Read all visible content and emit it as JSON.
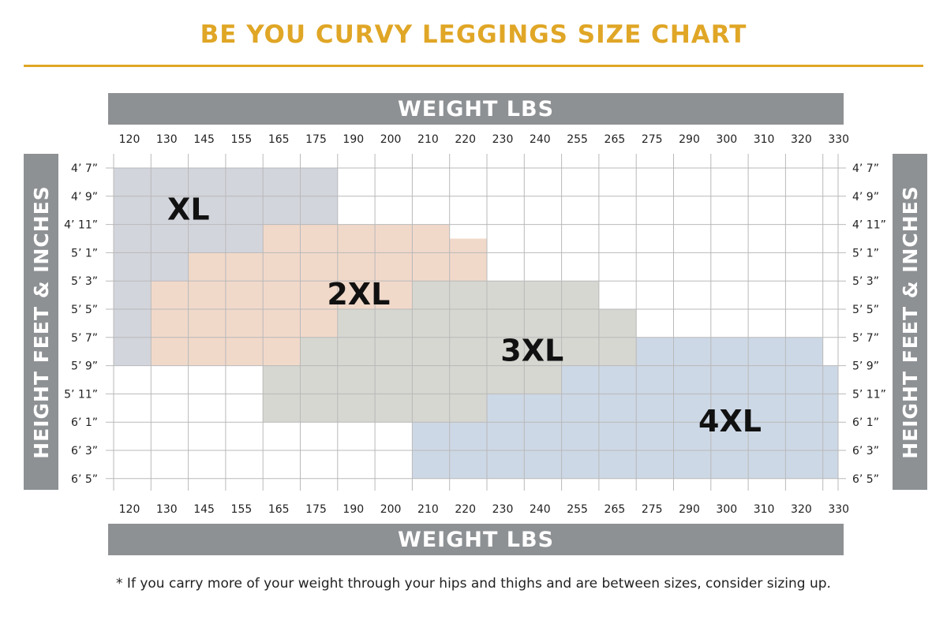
{
  "title": "BE YOU CURVY LEGGINGS SIZE CHART",
  "colors": {
    "title": "#e0a626",
    "band": "#8e9194",
    "grid": "#b9b9b9",
    "sizes": {
      "XL": "#d3d5dd",
      "2XL": "#f1d9ca",
      "3XL": "#d6d7d1",
      "4XL": "#cdd8e6"
    }
  },
  "footnote": "* If you carry more of your weight through your hips and thighs and are between sizes, consider sizing up.",
  "chart_data": {
    "type": "heatmap",
    "xlabel": "WEIGHT LBS",
    "ylabel": "HEIGHT FEET & INCHES",
    "x": [
      "120",
      "130",
      "145",
      "155",
      "165",
      "175",
      "190",
      "200",
      "210",
      "220",
      "230",
      "240",
      "255",
      "265",
      "275",
      "290",
      "300",
      "310",
      "320",
      "330"
    ],
    "y": [
      "4’ 7”",
      "4’ 9”",
      "4’ 11”",
      "5’ 1”",
      "5’ 3”",
      "5’ 5”",
      "5’ 7”",
      "5’ 9”",
      "5’ 11”",
      "6’ 1”",
      "6’ 3”",
      "6’ 5”"
    ],
    "series": [
      {
        "name": "XL",
        "regions": [
          {
            "x": [
              "120",
              "190"
            ],
            "y": [
              "4’ 7”",
              "4’ 11”"
            ]
          },
          {
            "x": [
              "120",
              "165"
            ],
            "y": [
              "4’ 11”",
              "5’ 1”"
            ]
          },
          {
            "x": [
              "120",
              "145"
            ],
            "y": [
              "5’ 1”",
              "5’ 3”"
            ]
          },
          {
            "x": [
              "120",
              "130"
            ],
            "y": [
              "5’ 3”",
              "5’ 9”"
            ]
          }
        ]
      },
      {
        "name": "2XL",
        "regions": [
          {
            "x": [
              "165",
              "220"
            ],
            "y": [
              "4’ 11”",
              "5’ 1”"
            ]
          },
          {
            "x": [
              "220",
              "230"
            ],
            "y": [
              "5’ 0”",
              "5’ 1”"
            ]
          },
          {
            "x": [
              "145",
              "230"
            ],
            "y": [
              "5’ 1”",
              "5’ 3”"
            ]
          },
          {
            "x": [
              "130",
              "210"
            ],
            "y": [
              "5’ 3”",
              "5’ 5”"
            ]
          },
          {
            "x": [
              "130",
              "190"
            ],
            "y": [
              "5’ 5”",
              "5’ 7”"
            ]
          },
          {
            "x": [
              "130",
              "175"
            ],
            "y": [
              "5’ 7”",
              "5’ 9”"
            ]
          }
        ]
      },
      {
        "name": "3XL",
        "regions": [
          {
            "x": [
              "210",
              "265"
            ],
            "y": [
              "5’ 3”",
              "5’ 5”"
            ]
          },
          {
            "x": [
              "190",
              "275"
            ],
            "y": [
              "5’ 5”",
              "5’ 7”"
            ]
          },
          {
            "x": [
              "175",
              "275"
            ],
            "y": [
              "5’ 7”",
              "5’ 9”"
            ]
          },
          {
            "x": [
              "165",
              "255"
            ],
            "y": [
              "5’ 9”",
              "5’ 11”"
            ]
          },
          {
            "x": [
              "165",
              "230"
            ],
            "y": [
              "5’ 11”",
              "6’ 1”"
            ]
          }
        ]
      },
      {
        "name": "4XL",
        "regions": [
          {
            "x": [
              "275",
              "330"
            ],
            "y": [
              "5’ 7”",
              "5’ 9”"
            ]
          },
          {
            "x": [
              "255",
              "330+"
            ],
            "y": [
              "5’ 9”",
              "5’ 11”"
            ]
          },
          {
            "x": [
              "230",
              "330+"
            ],
            "y": [
              "5’ 11”",
              "6’ 1”"
            ]
          },
          {
            "x": [
              "210",
              "330+"
            ],
            "y": [
              "6’ 1”",
              "6’ 5”"
            ]
          }
        ]
      }
    ],
    "labels": [
      {
        "text": "XL",
        "x": 137,
        "y": "4’ 10”"
      },
      {
        "text": "2XL",
        "x": 186,
        "y": "5’ 4”"
      },
      {
        "text": "3XL",
        "x": 236,
        "y": "5’ 8”"
      },
      {
        "text": "4XL",
        "x": 293,
        "y": "6’ 1”"
      }
    ]
  }
}
